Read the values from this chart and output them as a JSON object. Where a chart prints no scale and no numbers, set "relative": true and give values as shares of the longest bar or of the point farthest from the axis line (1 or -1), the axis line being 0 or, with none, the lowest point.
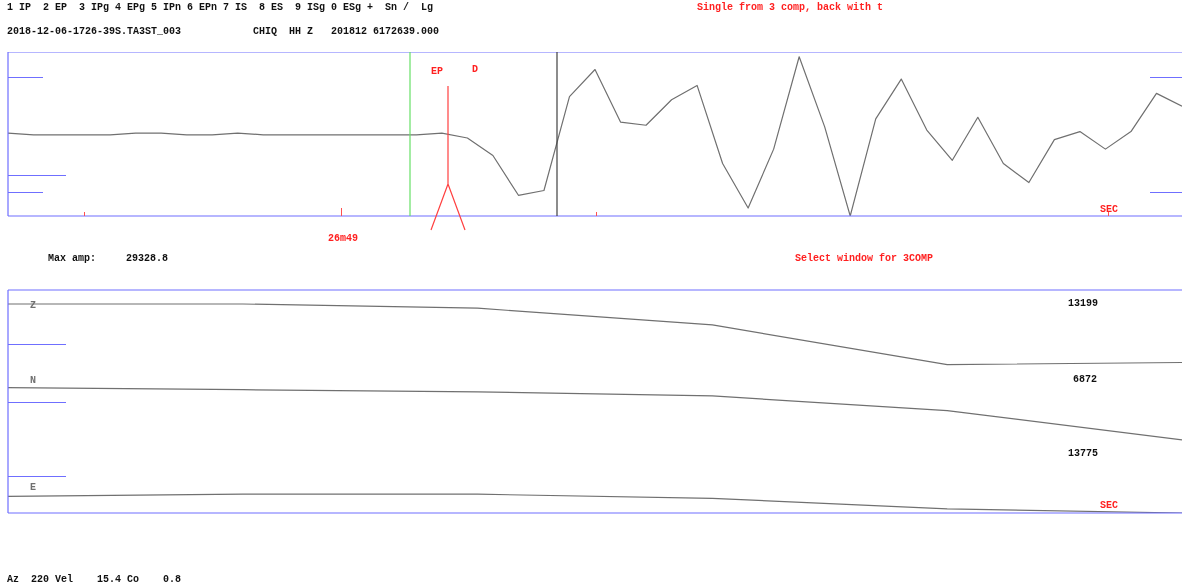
{
  "chart_data": [
    {
      "type": "line",
      "relative": true,
      "categories": [
        null,
        null,
        null,
        null,
        null,
        null,
        null,
        null,
        null,
        null,
        null,
        null,
        null,
        null,
        null,
        null,
        null,
        null,
        null,
        null,
        null,
        null,
        null,
        null,
        null,
        null,
        null,
        null,
        null,
        null,
        null,
        null,
        null,
        null,
        null,
        null,
        null,
        null,
        null,
        null,
        null,
        null,
        null,
        null,
        null,
        null,
        null
      ],
      "series": [
        {
          "color": "#707070",
          "values": [
            0.52,
            0.51,
            0.51,
            0.51,
            0.51,
            0.52,
            0.52,
            0.51,
            0.51,
            0.52,
            0.51,
            0.51,
            0.51,
            0.51,
            0.51,
            0.51,
            0.51,
            0.52,
            0.49,
            0.38,
            0.13,
            0.16,
            0.75,
            0.92,
            0.59,
            0.57,
            0.73,
            0.82,
            0.33,
            0.05,
            0.42,
            1,
            0.56,
            0,
            0.61,
            0.86,
            0.54,
            0.35,
            0.62,
            0.33,
            0.21,
            0.48,
            0.53,
            0.42,
            0.53,
            0.77,
            0.69
          ]
        }
      ],
      "annotations": [
        "EP",
        "1 IP  2 EP  3 IPg 4 EPg 5 IPn 6 EPn 7 IS  8 ES  9 ISg 0 ESg +  Sn /  Lg",
        "Single from 3 comp, back with t",
        "2018-12-06-1726-39S.TA3ST_003            CHIQ  HH Z   201812 6172639.000",
        "D",
        "26m49",
        "SEC",
        "Max amp:     29328.8",
        "Select window for 3COMP"
      ]
    },
    {
      "type": "line",
      "relative": true,
      "categories": [
        null,
        null,
        null,
        null,
        null,
        null
      ],
      "series": [
        {
          "name": "Z",
          "color": "#707070",
          "values": [
            1,
            1,
            0.98,
            0.9,
            0.71,
            0.72
          ]
        },
        {
          "name": "N",
          "color": "#707070",
          "values": [
            0.6,
            0.59,
            0.58,
            0.56,
            0.49,
            0.35
          ]
        },
        {
          "name": "E",
          "color": "#707070",
          "values": [
            0.08,
            0.09,
            0.09,
            0.07,
            0.02,
            0
          ]
        }
      ],
      "annotations": [
        "13199",
        "6872",
        "13775",
        "SEC",
        "Az  220 Vel    15.4 Co    0.8"
      ]
    }
  ]
}
